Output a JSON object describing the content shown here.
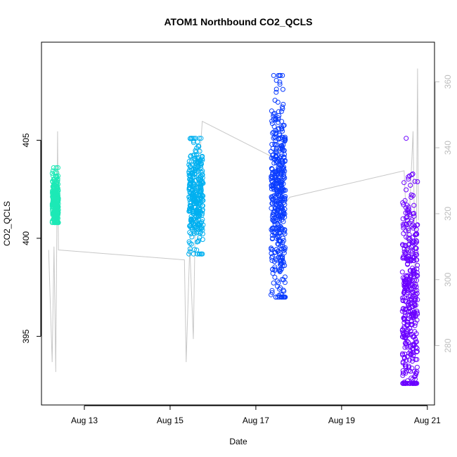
{
  "chart_data": {
    "type": "scatter",
    "title": "ATOM1 Northbound CO2_QCLS",
    "xlabel": "Date",
    "ylabel": "CO2_QCLS",
    "x_ticks": [
      "Aug 13",
      "Aug 15",
      "Aug 17",
      "Aug 19",
      "Aug 21"
    ],
    "y_ticks": [
      395,
      400,
      405
    ],
    "y2_ticks": [
      280,
      300,
      320,
      340,
      360
    ],
    "xlim": [
      "2016-08-12 00:00",
      "2016-08-21 04:00"
    ],
    "ylim": [
      391.5,
      410
    ],
    "y2lim": [
      262,
      372
    ],
    "grid": false,
    "colors": {
      "axis": "#000000",
      "right_axis": "#bdbdbd",
      "overlay_line": "#c8c8c8"
    },
    "series": [
      {
        "color": "#1de9b6",
        "x_range": [
          "2016-08-12 06:00",
          "2016-08-12 09:30"
        ],
        "y_range": [
          400.8,
          403.6
        ],
        "y_center": 401.9,
        "n": 260
      },
      {
        "color": "#00b0f0",
        "x_range": [
          "2016-08-15 10:30",
          "2016-08-15 18:30"
        ],
        "y_range": [
          399.2,
          405.1
        ],
        "y_center": 402.0,
        "n": 340
      },
      {
        "color": "#0a3cff",
        "x_range": [
          "2016-08-17 08:30",
          "2016-08-17 16:30"
        ],
        "y_range": [
          397.0,
          408.3
        ],
        "y_center": 402.0,
        "n": 440
      },
      {
        "color": "#6b00ff",
        "x_range": [
          "2016-08-20 10:00",
          "2016-08-20 18:30"
        ],
        "y_range": [
          392.6,
          405.1
        ],
        "y_center": 396.5,
        "n": 420
      }
    ],
    "overlay_line_y2": [
      [
        "2016-08-12 04:00",
        309
      ],
      [
        "2016-08-12 06:00",
        275
      ],
      [
        "2016-08-12 07:00",
        310
      ],
      [
        "2016-08-12 08:00",
        272
      ],
      [
        "2016-08-12 09:00",
        345
      ],
      [
        "2016-08-12 09:30",
        309
      ],
      [
        "2016-08-15 08:00",
        306
      ],
      [
        "2016-08-15 09:00",
        275
      ],
      [
        "2016-08-15 11:00",
        310
      ],
      [
        "2016-08-15 13:00",
        282
      ],
      [
        "2016-08-15 14:00",
        315
      ],
      [
        "2016-08-15 16:00",
        332
      ],
      [
        "2016-08-15 18:00",
        348
      ],
      [
        "2016-08-17 10:00",
        337
      ],
      [
        "2016-08-17 13:00",
        341
      ],
      [
        "2016-08-17 15:00",
        322
      ],
      [
        "2016-08-17 19:00",
        325
      ],
      [
        "2016-08-20 11:00",
        333
      ],
      [
        "2016-08-20 13:00",
        308
      ],
      [
        "2016-08-20 16:00",
        345
      ],
      [
        "2016-08-20 17:30",
        287
      ],
      [
        "2016-08-20 18:30",
        364
      ],
      [
        "2016-08-20 19:00",
        318
      ]
    ]
  }
}
